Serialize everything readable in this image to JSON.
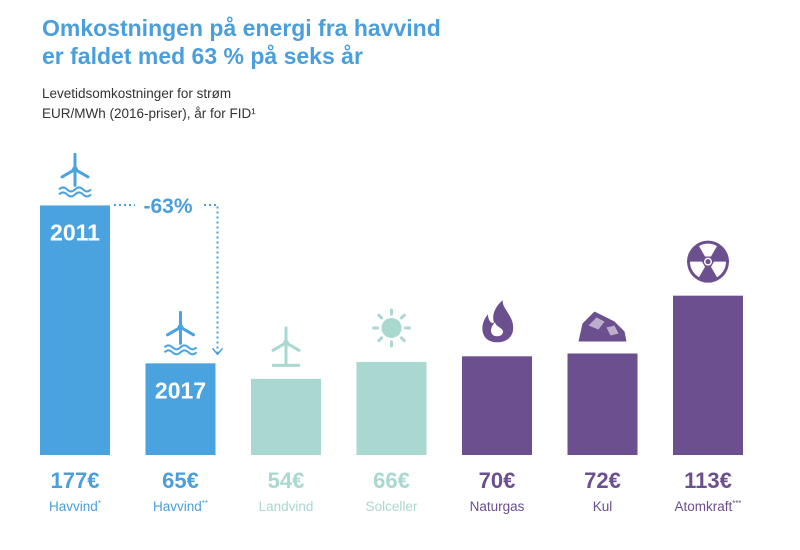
{
  "header": {
    "title_line1": "Omkostningen på energi fra havvind",
    "title_line2": "er faldet med 63 % på seks år",
    "subtitle_line1": "Levetidsomkostninger for strøm",
    "subtitle_line2": "EUR/MWh (2016-priser), år for FID¹"
  },
  "chart_data": {
    "type": "bar",
    "title": "Omkostningen på energi fra havvind er faldet med 63 % på seks år",
    "subtitle": "Levetidsomkostninger for strøm, EUR/MWh (2016-priser), år for FID¹",
    "categories": [
      "Havvind*",
      "Havvind**",
      "Landvind",
      "Solceller",
      "Naturgas",
      "Kul",
      "Atomkraft***"
    ],
    "values": [
      177,
      65,
      54,
      66,
      70,
      72,
      113
    ],
    "value_labels": [
      "177€",
      "65€",
      "54€",
      "66€",
      "70€",
      "72€",
      "113€"
    ],
    "bar_labels": [
      "2011",
      "2017",
      "",
      "",
      "",
      "",
      ""
    ],
    "icons": [
      "wind-turbine-offshore-icon",
      "wind-turbine-offshore-icon",
      "wind-turbine-onshore-icon",
      "sun-icon",
      "flame-icon",
      "coal-icon",
      "radiation-icon"
    ],
    "colors": [
      "#4aa3df",
      "#4aa3df",
      "#a8d8cf",
      "#a8d8cf",
      "#6b4f8f",
      "#6b4f8f",
      "#6b4f8f"
    ],
    "label_colors": [
      "#4a9fdb",
      "#4a9fdb",
      "#a8d8cf",
      "#a8d8cf",
      "#6b4f8f",
      "#6b4f8f",
      "#6b4f8f"
    ],
    "annotation": "-63%",
    "ylabel": "EUR/MWh",
    "ylim": [
      0,
      180
    ],
    "grid": false
  }
}
